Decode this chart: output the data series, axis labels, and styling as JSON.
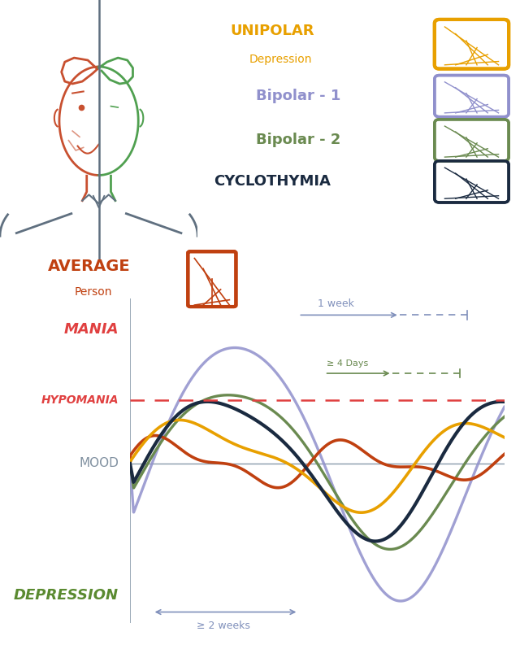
{
  "background_color": "#ffffff",
  "colors": {
    "unipolar": "#E8A000",
    "bipolar1": "#9090CC",
    "bipolar2": "#6A8A50",
    "cyclothymia": "#1A2A40",
    "average": "#C04010",
    "hypomania_line": "#E04040",
    "axis": "#8899AA",
    "mania_text": "#E04040",
    "hypomania_text": "#E04040",
    "mood_text": "#8090A0",
    "depression_text": "#5A8A30",
    "week_arrow": "#8090BB",
    "days_arrow": "#6A8A50",
    "face_left": "#C85030",
    "face_right": "#50A050",
    "face_line": "#607080",
    "face_shoulder": "#607080",
    "avg_label": "#C04010"
  },
  "chart": {
    "xlim": [
      0,
      10
    ],
    "ylim": [
      -1.45,
      1.5
    ],
    "hypo_y": 0.58
  }
}
